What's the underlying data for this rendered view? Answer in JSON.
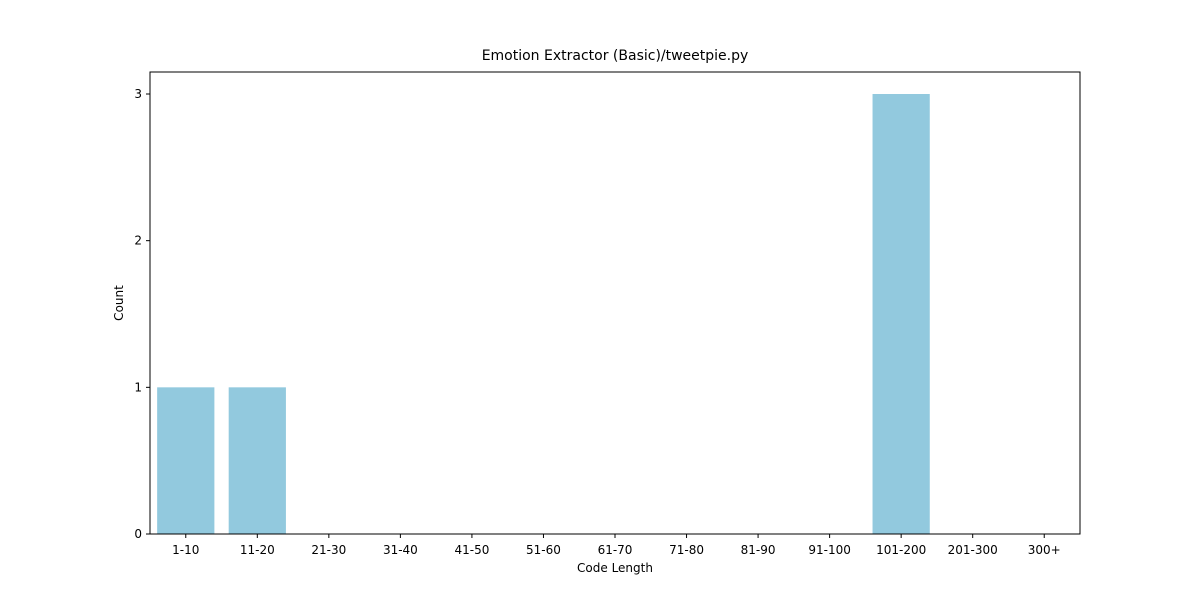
{
  "chart_data": {
    "type": "bar",
    "title": "Emotion Extractor (Basic)/tweetpie.py",
    "xlabel": "Code Length",
    "ylabel": "Count",
    "categories": [
      "1-10",
      "11-20",
      "21-30",
      "31-40",
      "41-50",
      "51-60",
      "61-70",
      "71-80",
      "81-90",
      "91-100",
      "101-200",
      "201-300",
      "300+"
    ],
    "values": [
      1,
      1,
      0,
      0,
      0,
      0,
      0,
      0,
      0,
      0,
      3,
      0,
      0
    ],
    "ylim": [
      0,
      3.15
    ],
    "yticks": [
      0,
      1,
      2,
      3
    ],
    "bar_color": "#92c9de",
    "grid": false,
    "legend": "none"
  }
}
